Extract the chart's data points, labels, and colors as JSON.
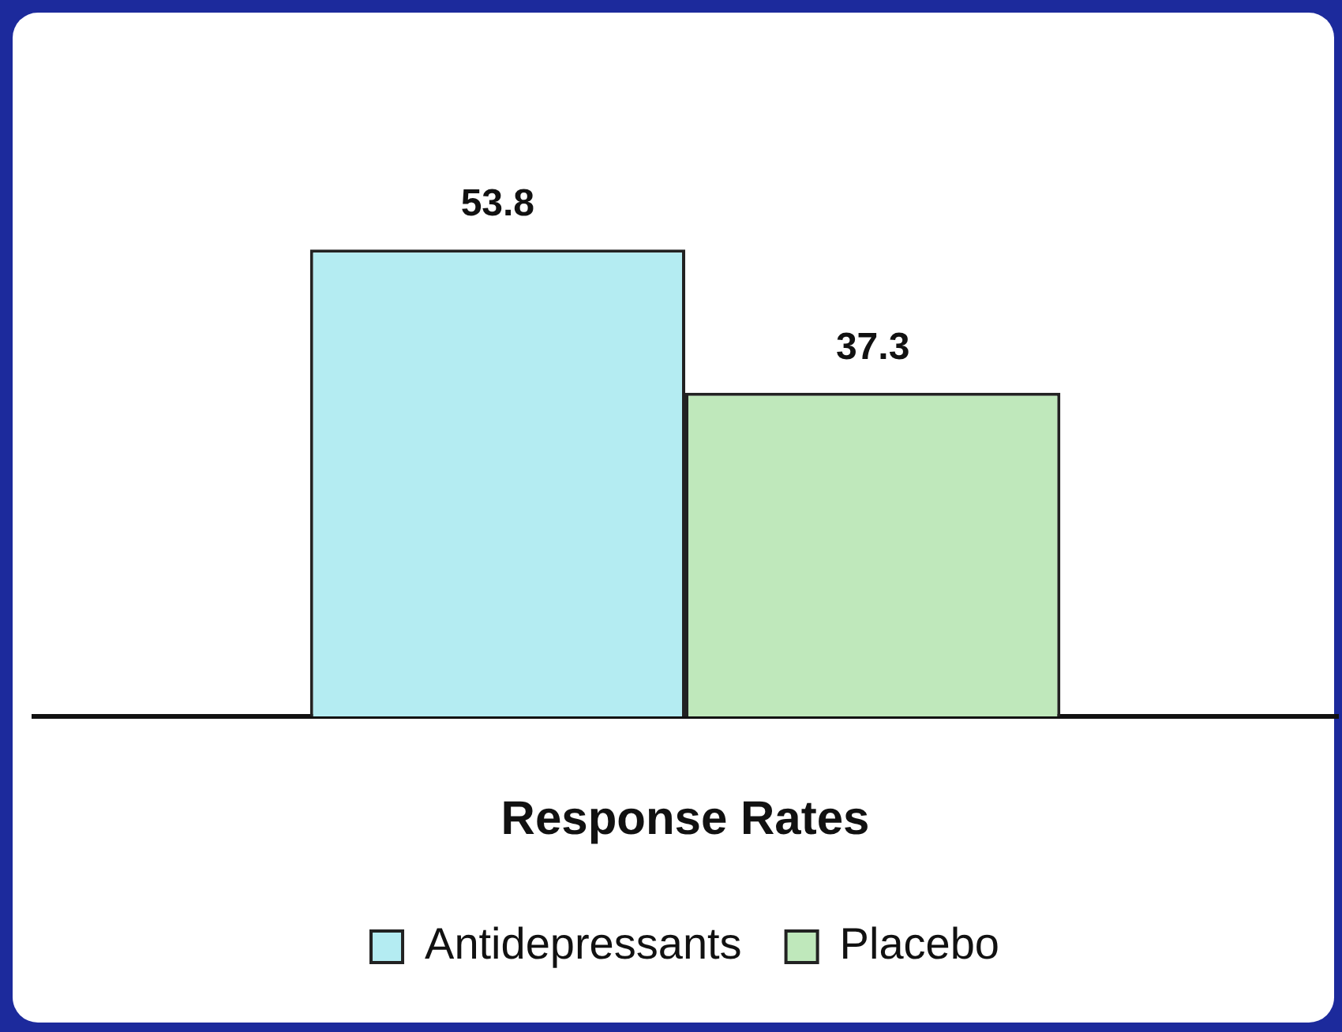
{
  "chart_data": {
    "type": "bar",
    "xlabel": "Response Rates",
    "categories": [
      null
    ],
    "series": [
      {
        "name": "Antidepressants",
        "color": "#b4ecf2",
        "values": [
          53.8
        ]
      },
      {
        "name": "Placebo",
        "color": "#bfe8bb",
        "values": [
          37.3
        ]
      }
    ],
    "data_labels": true,
    "legend": "bottom"
  }
}
